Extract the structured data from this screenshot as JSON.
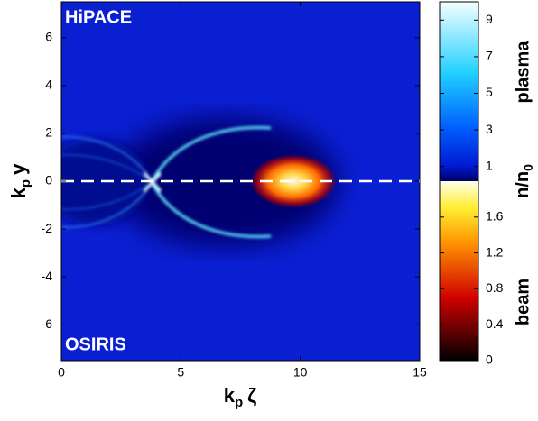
{
  "chart_data": {
    "type": "heatmap",
    "xlabel": [
      "k",
      "p",
      "ζ"
    ],
    "ylabel": [
      "k",
      "p",
      "y"
    ],
    "xlim": [
      0,
      15
    ],
    "xticks": [
      0,
      5,
      10,
      15
    ],
    "ylim": [
      -7.5,
      7.5
    ],
    "yticks": [
      -6,
      -4,
      -2,
      0,
      2,
      4,
      6
    ],
    "hline": 0,
    "annotations": [
      "HiPACE",
      "OSIRIS"
    ],
    "colorbar_label": [
      "n/n",
      "0"
    ],
    "colorbars": [
      {
        "name": "plasma",
        "lim": [
          0.2,
          10
        ],
        "ticks": [
          1,
          3,
          5,
          7,
          9
        ]
      },
      {
        "name": "beam",
        "lim": [
          0,
          2
        ],
        "ticks": [
          0,
          0.4,
          0.8,
          1.2,
          1.6
        ]
      }
    ]
  }
}
